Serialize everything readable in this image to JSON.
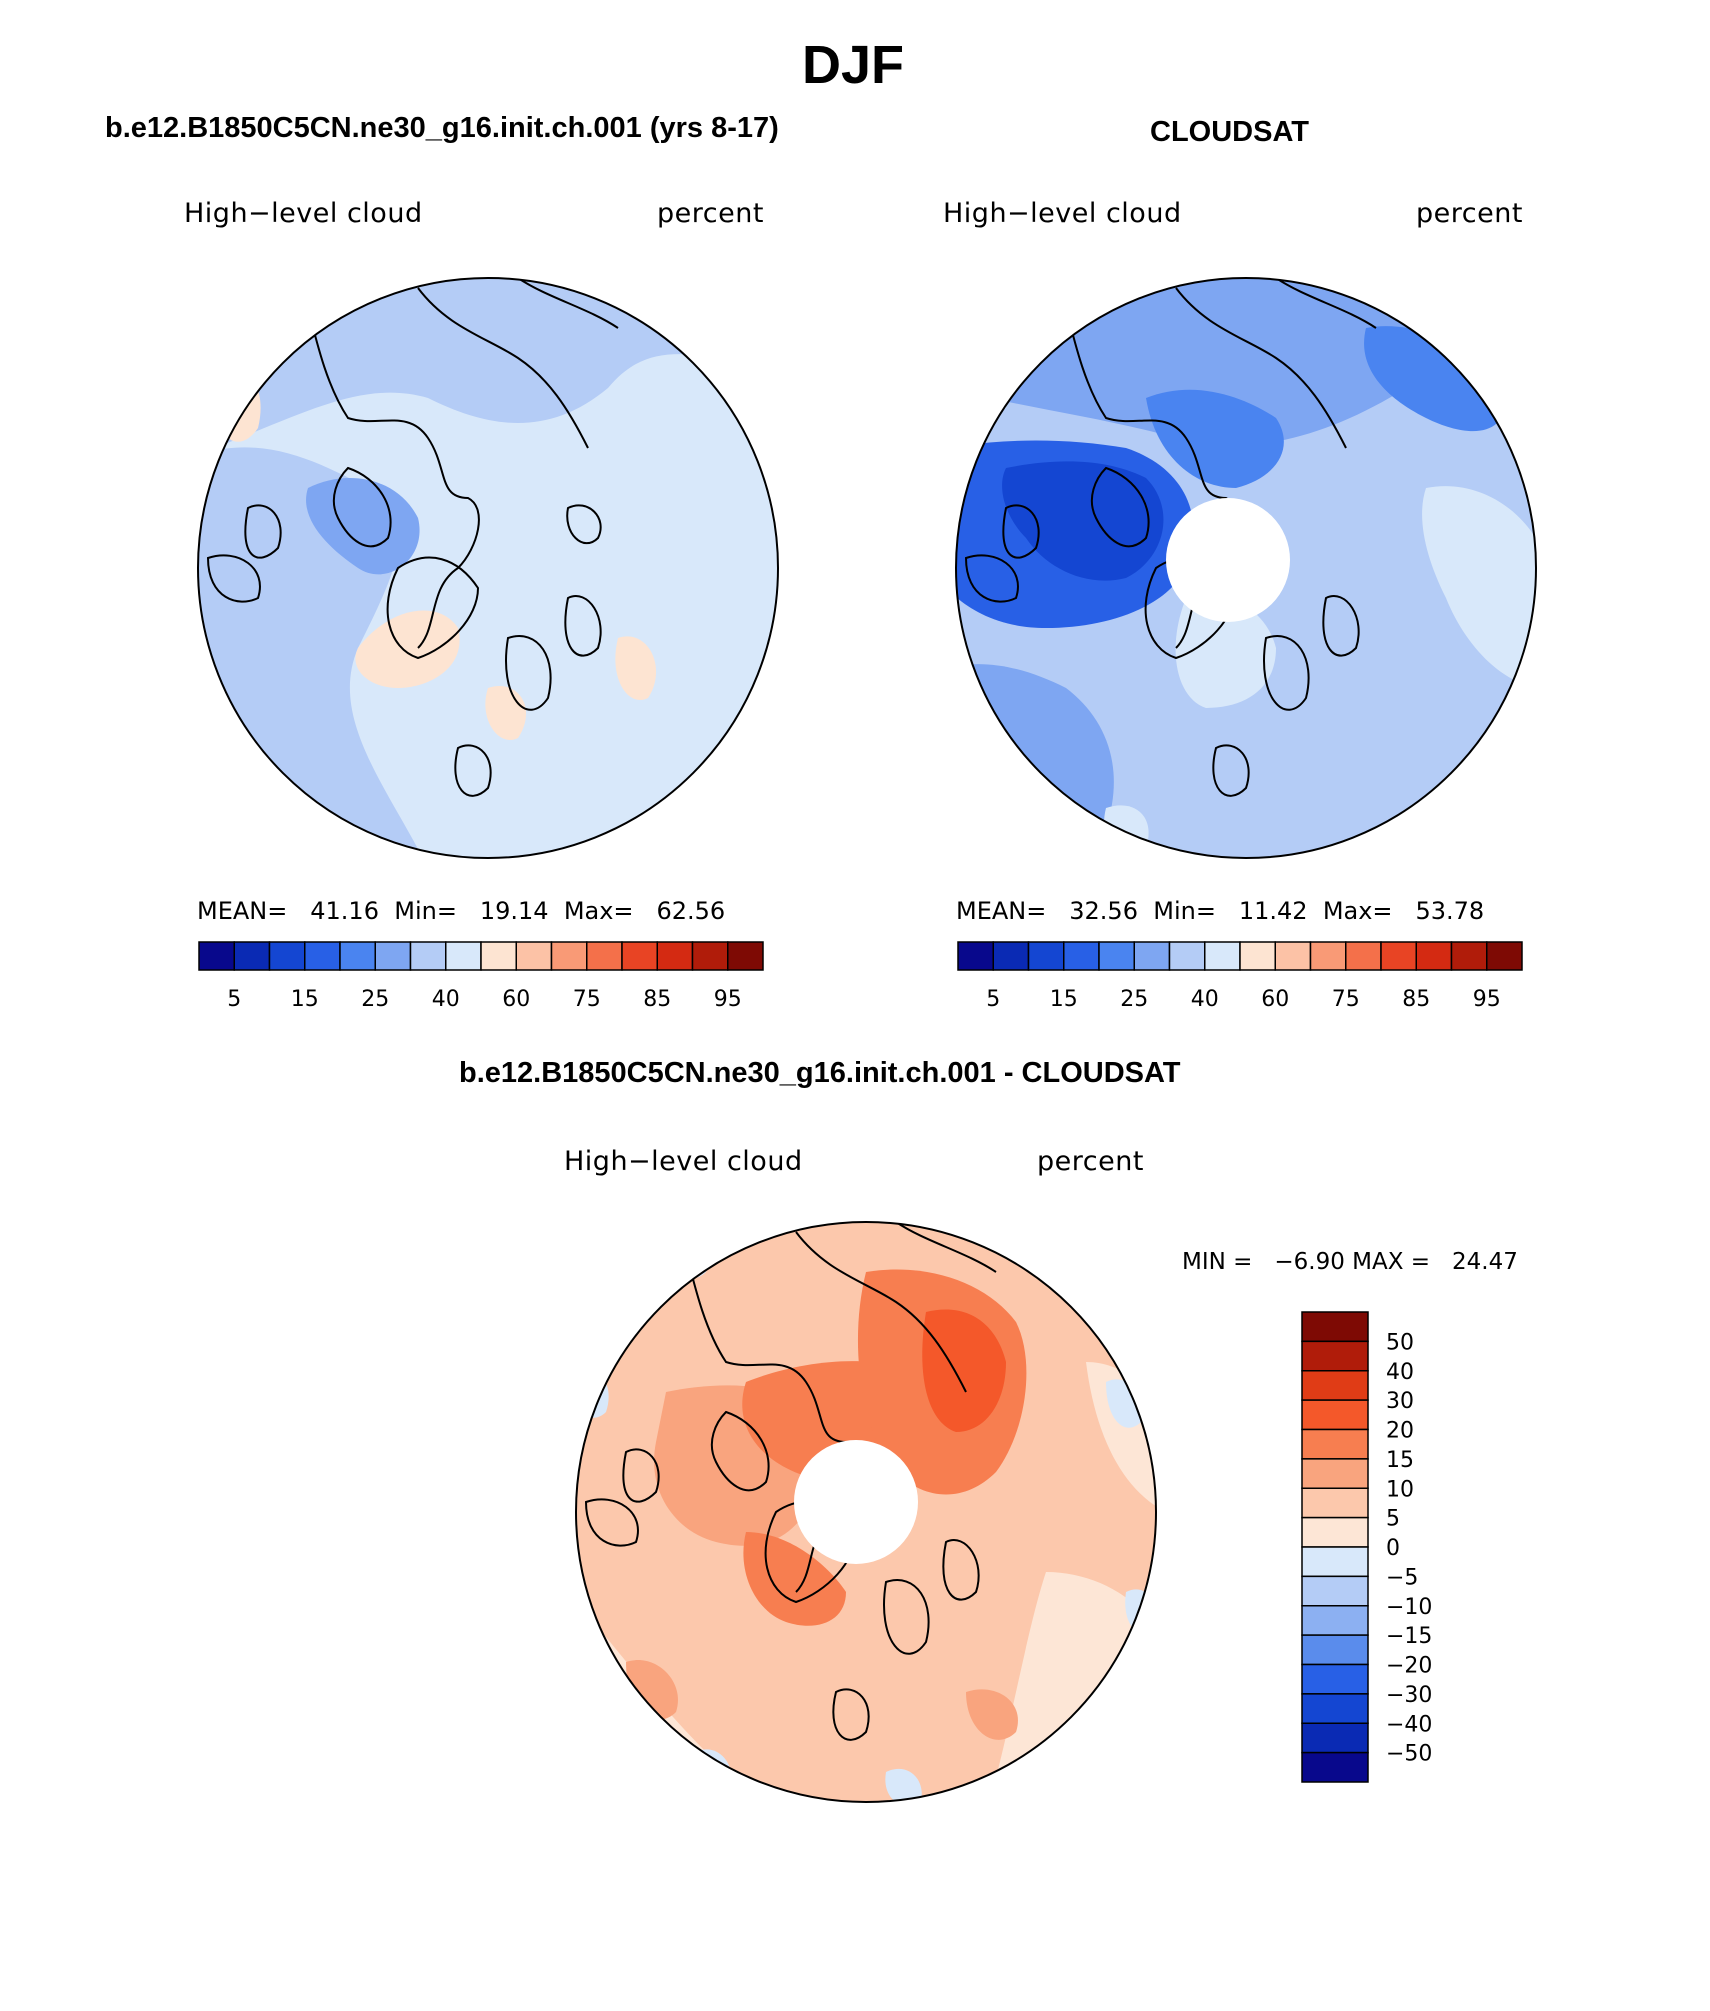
{
  "title": "DJF",
  "panels": [
    {
      "case_title": "b.e12.B1850C5CN.ne30_g16.init.ch.001 (yrs 8-17)",
      "left_label": "High−level cloud",
      "right_label": "percent",
      "stats": {
        "mean_label": "MEAN=",
        "mean": "41.16",
        "min_label": "Min=",
        "min": "19.14",
        "max_label": "Max=",
        "max": "62.56"
      }
    },
    {
      "case_title": "CLOUDSAT",
      "left_label": "High−level cloud",
      "right_label": "percent",
      "stats": {
        "mean_label": "MEAN=",
        "mean": "32.56",
        "min_label": "Min=",
        "min": "11.42",
        "max_label": "Max=",
        "max": "53.78"
      }
    }
  ],
  "abs_colorbar": {
    "colors": [
      "#08088c",
      "#0a2ab4",
      "#1446d2",
      "#2860e6",
      "#4a84f0",
      "#7ea6f2",
      "#b4ccf6",
      "#d8e8fa",
      "#fde4d2",
      "#fcc2a6",
      "#f99a76",
      "#f4704a",
      "#e84424",
      "#d42a12",
      "#b01c0a",
      "#7e0a04"
    ],
    "tick_labels": [
      "5",
      "15",
      "25",
      "40",
      "60",
      "75",
      "85",
      "95"
    ]
  },
  "diff_panel": {
    "title": "b.e12.B1850C5CN.ne30_g16.init.ch.001 - CLOUDSAT",
    "left_label": "High−level cloud",
    "right_label": "percent",
    "minmax": "MIN =   −6.90 MAX =   24.47"
  },
  "diff_colorbar": {
    "colors_top_to_bottom": [
      "#7e0a04",
      "#b01c0a",
      "#e03c16",
      "#f4582a",
      "#f77e50",
      "#f9a47e",
      "#fcc8ac",
      "#fde6d6",
      "#d8e8fa",
      "#b4ccf6",
      "#8cb0f2",
      "#5a8cec",
      "#2860e6",
      "#1446d2",
      "#0a2ab4",
      "#08088c"
    ],
    "tick_labels_top_to_bottom": [
      "50",
      "40",
      "30",
      "20",
      "15",
      "10",
      "5",
      "0",
      "−5",
      "−10",
      "−15",
      "−20",
      "−30",
      "−40",
      "−50"
    ]
  }
}
